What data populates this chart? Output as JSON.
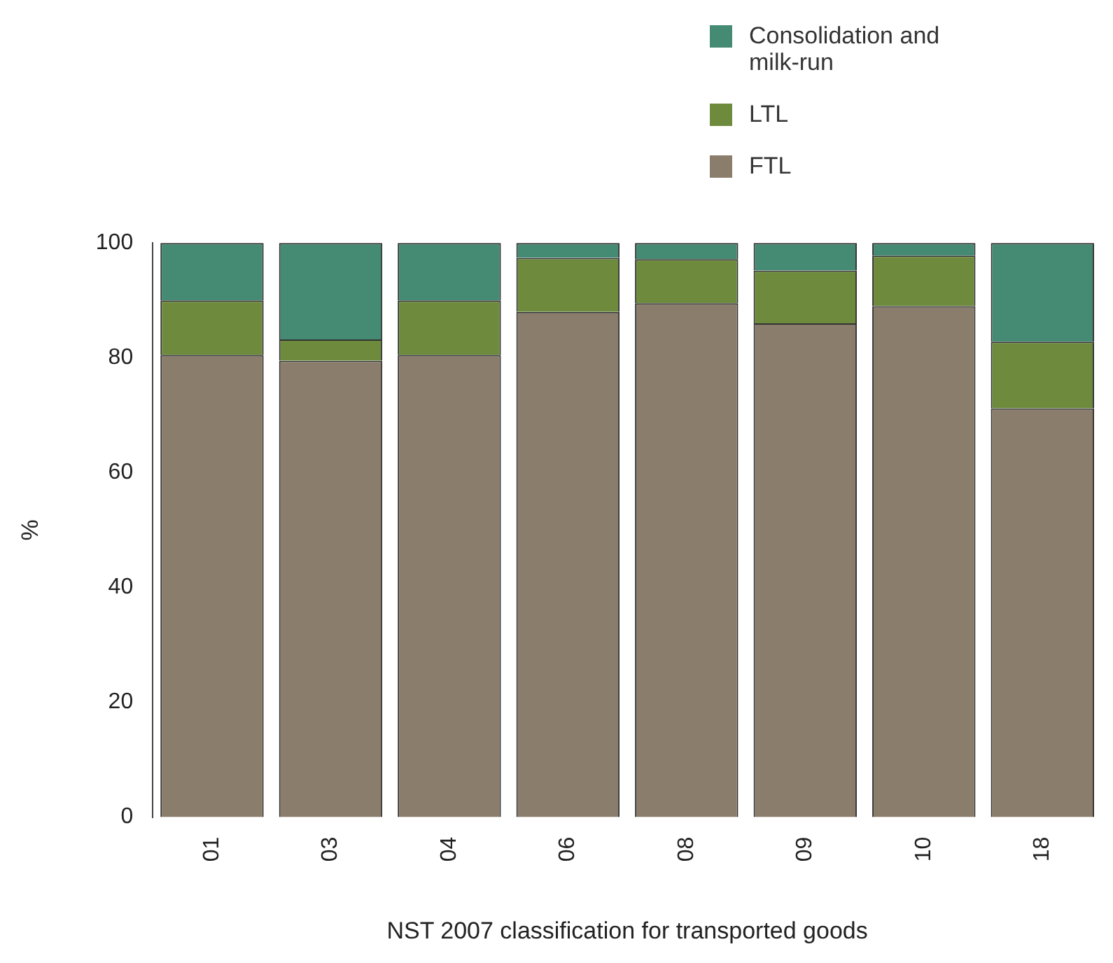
{
  "chart_data": {
    "type": "bar",
    "stacked": true,
    "xlabel": "NST 2007 classification for transported goods",
    "ylabel": "%",
    "categories": [
      "01",
      "03",
      "04",
      "06",
      "08",
      "09",
      "10",
      "18"
    ],
    "series": [
      {
        "name": "FTL",
        "color": "#8b7d6b",
        "values": [
          80.5,
          79.5,
          80.5,
          88,
          89.5,
          86,
          89,
          71.2
        ]
      },
      {
        "name": "LTL",
        "color": "#6e8b3d",
        "values": [
          9.5,
          3.7,
          9.5,
          9.4,
          7.7,
          9.2,
          8.8,
          11.6
        ]
      },
      {
        "name": "Consolidation and milk-run",
        "color": "#458b74",
        "values": [
          10,
          16.8,
          10,
          2.6,
          2.8,
          4.8,
          2.2,
          17.2
        ]
      }
    ],
    "ylim": [
      0,
      100
    ],
    "yticks": [
      0,
      20,
      40,
      60,
      80,
      100
    ],
    "grid": false,
    "legend": "top right"
  }
}
